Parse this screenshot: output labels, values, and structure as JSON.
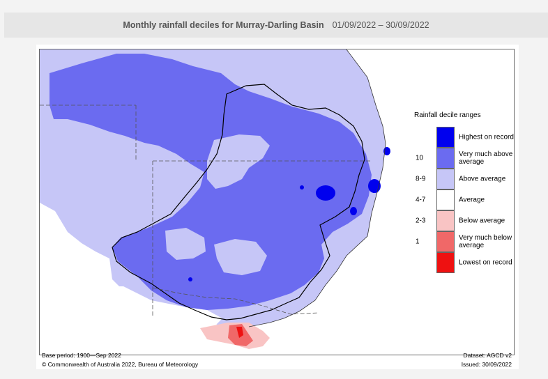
{
  "header": {
    "title": "Monthly rainfall deciles for Murray-Darling Basin",
    "date_range": "01/09/2022 – 30/09/2022"
  },
  "legend": {
    "title": "Rainfall decile ranges",
    "items": [
      {
        "decile": "",
        "label": "Highest on record",
        "color": "#0000ee"
      },
      {
        "decile": "10",
        "label": "Very much above average",
        "color": "#6b6bf0"
      },
      {
        "decile": "8-9",
        "label": "Above average",
        "color": "#c6c6f7"
      },
      {
        "decile": "4-7",
        "label": "Average",
        "color": "#ffffff"
      },
      {
        "decile": "2-3",
        "label": "Below average",
        "color": "#f9c4c4"
      },
      {
        "decile": "1",
        "label": "Very much below average",
        "color": "#f06868"
      },
      {
        "decile": "",
        "label": "Lowest on record",
        "color": "#ee1111"
      }
    ]
  },
  "footer": {
    "base_period": "Base period: 1900—Sep 2022",
    "dataset": "Dataset: AGCD v2",
    "copyright": "© Commonwealth of Australia 2022, Bureau of Meteorology",
    "issued": "Issued: 30/09/2022"
  }
}
